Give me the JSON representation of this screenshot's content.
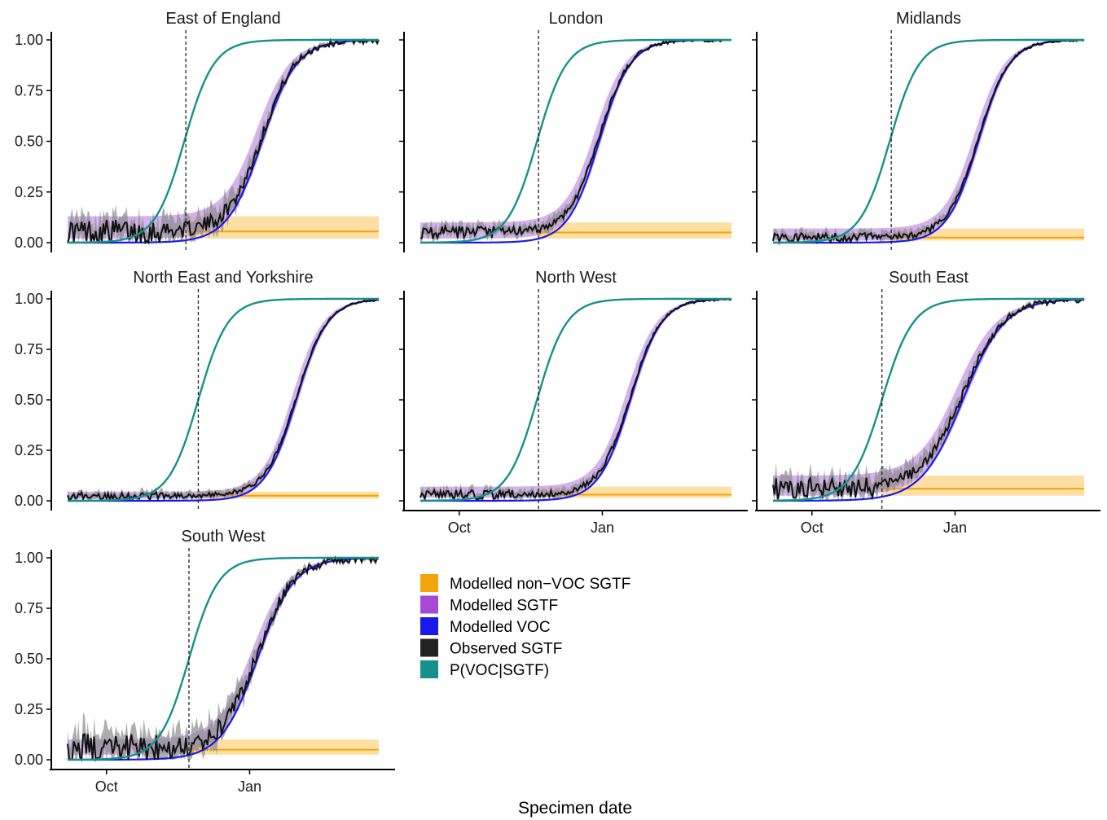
{
  "figure": {
    "xlabel": "Specimen date",
    "colors": {
      "non_voc": "#f5a30a",
      "non_voc_band": "#fdd78c",
      "sgtf_band": "#c49ae6",
      "voc": "#1a1ae8",
      "observed": "#111111",
      "observed_band": "#8c8c8c",
      "p_voc_sgtf": "#16908d",
      "intro_line": "#222222"
    }
  },
  "legend": {
    "items": [
      {
        "label": "Modelled non−VOC SGTF",
        "color": "#f5a30a"
      },
      {
        "label": "Modelled SGTF",
        "color": "#a64ad6"
      },
      {
        "label": "Modelled VOC",
        "color": "#1a1ae8"
      },
      {
        "label": "Observed SGTF",
        "color": "#222222"
      },
      {
        "label": "P(VOC|SGTF)",
        "color": "#16908d"
      }
    ]
  },
  "chart_data": [
    {
      "type": "line",
      "title": "East of England",
      "x_ticks": [
        "Oct",
        "Jan"
      ],
      "y_ticks": [
        "0.00",
        "0.25",
        "0.50",
        "0.75",
        "1.00"
      ],
      "ylim": [
        0,
        1
      ],
      "x_range_days": [
        -25,
        175
      ],
      "voc_midpoint_day": 100,
      "voc_slope": 0.09,
      "p_voc_sgtf_midpoint_day": 50,
      "p_voc_sgtf_slope": 0.105,
      "non_voc_sgtf": 0.055,
      "non_voc_sgtf_ci": [
        0.02,
        0.13
      ],
      "intro_day": 51,
      "observed_noise": 0.04,
      "show_y_axis": true,
      "show_x_axis": false
    },
    {
      "type": "line",
      "title": "London",
      "x_ticks": [
        "Oct",
        "Jan"
      ],
      "y_ticks": [
        "0.00",
        "0.25",
        "0.50",
        "0.75",
        "1.00"
      ],
      "ylim": [
        0,
        1
      ],
      "x_range_days": [
        -25,
        175
      ],
      "voc_midpoint_day": 90,
      "voc_slope": 0.1,
      "p_voc_sgtf_midpoint_day": 50,
      "p_voc_sgtf_slope": 0.105,
      "non_voc_sgtf": 0.05,
      "non_voc_sgtf_ci": [
        0.02,
        0.1
      ],
      "intro_day": 51,
      "observed_noise": 0.02,
      "show_y_axis": false,
      "show_x_axis": false
    },
    {
      "type": "line",
      "title": "Midlands",
      "x_ticks": [
        "Oct",
        "Jan"
      ],
      "y_ticks": [
        "0.00",
        "0.25",
        "0.50",
        "0.75",
        "1.00"
      ],
      "ylim": [
        0,
        1
      ],
      "x_range_days": [
        -25,
        175
      ],
      "voc_midpoint_day": 107,
      "voc_slope": 0.1,
      "p_voc_sgtf_midpoint_day": 50,
      "p_voc_sgtf_slope": 0.105,
      "non_voc_sgtf": 0.025,
      "non_voc_sgtf_ci": [
        0.01,
        0.07
      ],
      "intro_day": 51,
      "observed_noise": 0.015,
      "show_y_axis": false,
      "show_x_axis": false
    },
    {
      "type": "line",
      "title": "North East and Yorkshire",
      "x_ticks": [
        "Oct",
        "Jan"
      ],
      "y_ticks": [
        "0.00",
        "0.25",
        "0.50",
        "0.75",
        "1.00"
      ],
      "ylim": [
        0,
        1
      ],
      "x_range_days": [
        -25,
        175
      ],
      "voc_midpoint_day": 122,
      "voc_slope": 0.1,
      "p_voc_sgtf_midpoint_day": 59,
      "p_voc_sgtf_slope": 0.105,
      "non_voc_sgtf": 0.025,
      "non_voc_sgtf_ci": [
        0.01,
        0.045
      ],
      "intro_day": 59,
      "observed_noise": 0.012,
      "show_y_axis": true,
      "show_x_axis": false
    },
    {
      "type": "line",
      "title": "North West",
      "x_ticks": [
        "Oct",
        "Jan"
      ],
      "y_ticks": [
        "0.00",
        "0.25",
        "0.50",
        "0.75",
        "1.00"
      ],
      "ylim": [
        0,
        1
      ],
      "x_range_days": [
        -25,
        175
      ],
      "voc_midpoint_day": 110,
      "voc_slope": 0.1,
      "p_voc_sgtf_midpoint_day": 50,
      "p_voc_sgtf_slope": 0.105,
      "non_voc_sgtf": 0.03,
      "non_voc_sgtf_ci": [
        0.015,
        0.07
      ],
      "intro_day": 51,
      "observed_noise": 0.015,
      "show_y_axis": false,
      "show_x_axis": true
    },
    {
      "type": "line",
      "title": "South East",
      "x_ticks": [
        "Oct",
        "Jan"
      ],
      "y_ticks": [
        "0.00",
        "0.25",
        "0.50",
        "0.75",
        "1.00"
      ],
      "ylim": [
        0,
        1
      ],
      "x_range_days": [
        -25,
        175
      ],
      "voc_midpoint_day": 97,
      "voc_slope": 0.075,
      "p_voc_sgtf_midpoint_day": 45,
      "p_voc_sgtf_slope": 0.1,
      "non_voc_sgtf": 0.06,
      "non_voc_sgtf_ci": [
        0.025,
        0.125
      ],
      "intro_day": 45,
      "observed_noise": 0.035,
      "show_y_axis": false,
      "show_x_axis": true
    },
    {
      "type": "line",
      "title": "South West",
      "x_ticks": [
        "Oct",
        "Jan"
      ],
      "y_ticks": [
        "0.00",
        "0.25",
        "0.50",
        "0.75",
        "1.00"
      ],
      "ylim": [
        0,
        1
      ],
      "x_range_days": [
        -25,
        175
      ],
      "voc_midpoint_day": 97,
      "voc_slope": 0.085,
      "p_voc_sgtf_midpoint_day": 53,
      "p_voc_sgtf_slope": 0.105,
      "non_voc_sgtf": 0.05,
      "non_voc_sgtf_ci": [
        0.025,
        0.1
      ],
      "intro_day": 53,
      "observed_noise": 0.05,
      "show_y_axis": true,
      "show_x_axis": true
    }
  ]
}
